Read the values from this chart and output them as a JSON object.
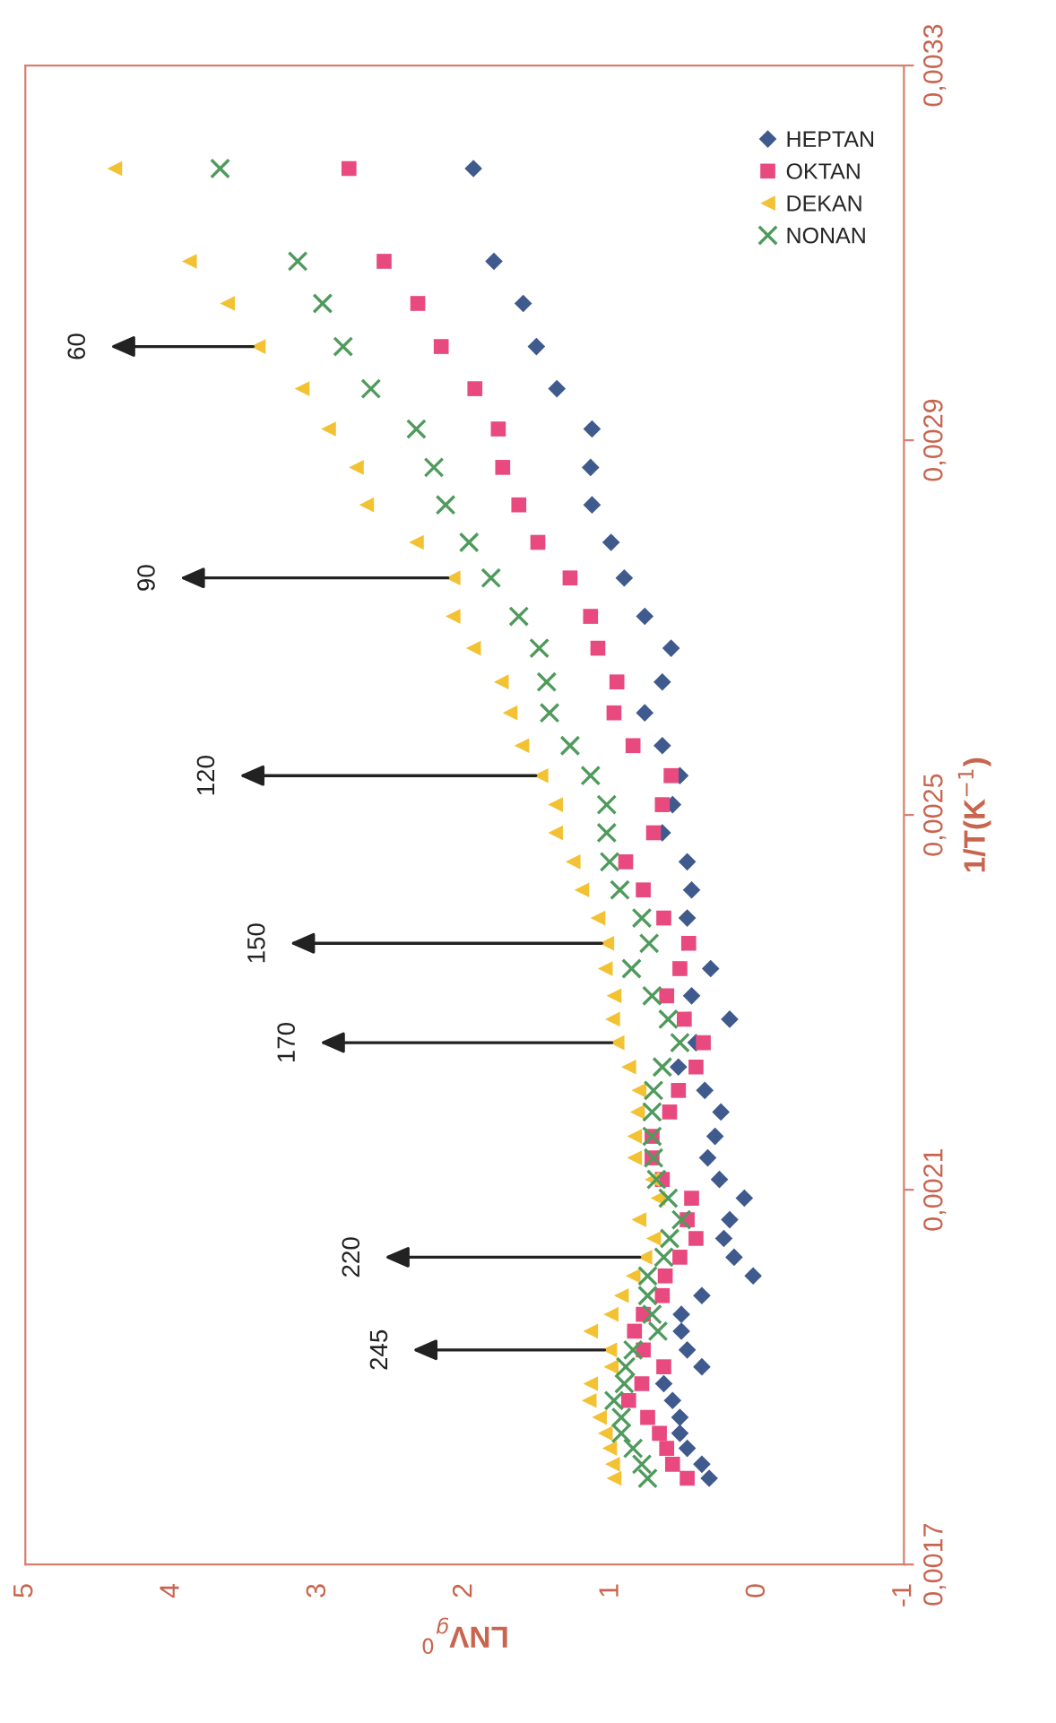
{
  "chart_data": {
    "type": "scatter",
    "xlabel": "LNV$_{g}$$^{0}$",
    "ylabel": "1/T(K$^{−1}$)",
    "xlim": [
      5,
      -1
    ],
    "xticks": [
      5,
      4,
      3,
      2,
      1,
      0,
      -1
    ],
    "ylim": [
      0.0017,
      0.0033
    ],
    "yticks": [
      {
        "value": 0.0017,
        "label": "0,0017"
      },
      {
        "value": 0.0021,
        "label": "0,0021"
      },
      {
        "value": 0.0025,
        "label": "0,0025"
      },
      {
        "value": 0.0029,
        "label": "0,0029"
      },
      {
        "value": 0.0033,
        "label": "0,0033"
      }
    ],
    "grid": false,
    "legend": "top right",
    "series": [
      {
        "name": "HEPTAN",
        "color": "#3f5a8c",
        "marker": "diamond",
        "x": [
          1.94,
          1.8,
          1.6,
          1.51,
          1.37,
          1.13,
          1.14,
          1.13,
          1.0,
          0.91,
          0.77,
          0.59,
          0.65,
          0.77,
          0.65,
          0.53,
          0.58,
          0.65,
          0.48,
          0.45,
          0.48,
          0.32,
          0.45,
          0.19,
          0.42,
          0.54,
          0.36,
          0.25,
          0.29,
          0.34,
          0.26,
          0.09,
          0.19,
          0.23,
          0.16,
          0.03,
          0.38,
          0.52,
          0.52,
          0.48,
          0.38,
          0.64,
          0.58,
          0.53,
          0.53,
          0.48,
          0.38,
          0.33
        ],
        "values": [
          0.00319,
          0.003091,
          0.003046,
          0.003,
          0.002955,
          0.002912,
          0.002871,
          0.002831,
          0.002791,
          0.002753,
          0.002712,
          0.002678,
          0.002642,
          0.002609,
          0.002574,
          0.002542,
          0.002511,
          0.002481,
          0.00245,
          0.00242,
          0.00239,
          0.002336,
          0.002307,
          0.002282,
          0.002257,
          0.002231,
          0.002206,
          0.002183,
          0.002157,
          0.002134,
          0.002111,
          0.002091,
          0.002068,
          0.002048,
          0.002028,
          0.002008,
          0.001987,
          0.001967,
          0.001949,
          0.001929,
          0.001911,
          0.001893,
          0.001875,
          0.001857,
          0.00184,
          0.001824,
          0.001807,
          0.001792
        ]
      },
      {
        "name": "OKTAN",
        "color": "#e84a7f",
        "marker": "square",
        "x": [
          2.79,
          2.55,
          2.32,
          2.16,
          1.93,
          1.77,
          1.74,
          1.63,
          1.5,
          1.28,
          1.14,
          1.09,
          0.96,
          0.98,
          0.85,
          0.59,
          0.65,
          0.71,
          0.9,
          0.78,
          0.64,
          0.47,
          0.53,
          0.62,
          0.5,
          0.37,
          0.42,
          0.54,
          0.6,
          0.72,
          0.72,
          0.65,
          0.45,
          0.48,
          0.42,
          0.53,
          0.63,
          0.65,
          0.78,
          0.84,
          0.78,
          0.64,
          0.79,
          0.88,
          0.75,
          0.67,
          0.62,
          0.58,
          0.48
        ],
        "values": [
          0.00319,
          0.003091,
          0.003046,
          0.003,
          0.002955,
          0.002912,
          0.002871,
          0.002831,
          0.002791,
          0.002753,
          0.002712,
          0.002678,
          0.002642,
          0.002609,
          0.002574,
          0.002542,
          0.002511,
          0.002481,
          0.00245,
          0.00242,
          0.00239,
          0.002363,
          0.002336,
          0.002307,
          0.002282,
          0.002257,
          0.002231,
          0.002206,
          0.002183,
          0.002157,
          0.002134,
          0.002111,
          0.002091,
          0.002068,
          0.002048,
          0.002028,
          0.002008,
          0.001987,
          0.001967,
          0.001949,
          0.001929,
          0.001911,
          0.001893,
          0.001875,
          0.001857,
          0.00184,
          0.001824,
          0.001807,
          0.001792
        ]
      },
      {
        "name": "DEKAN",
        "color": "#f2c232",
        "marker": "triangle",
        "x": [
          4.39,
          3.88,
          3.62,
          3.41,
          3.11,
          2.93,
          2.74,
          2.67,
          2.33,
          2.08,
          2.08,
          1.94,
          1.75,
          1.69,
          1.61,
          1.48,
          1.38,
          1.38,
          1.26,
          1.2,
          1.09,
          1.03,
          1.04,
          0.98,
          0.99,
          0.96,
          0.88,
          0.81,
          0.82,
          0.84,
          0.84,
          0.72,
          0.68,
          0.81,
          0.71,
          0.77,
          0.85,
          0.93,
          1.0,
          1.14,
          1.01,
          1.0,
          1.14,
          1.15,
          1.08,
          1.04,
          1.01,
          0.99,
          0.98
        ],
        "values": [
          0.00319,
          0.003091,
          0.003046,
          0.003,
          0.002955,
          0.002912,
          0.002871,
          0.002831,
          0.002791,
          0.002753,
          0.002712,
          0.002678,
          0.002642,
          0.002609,
          0.002574,
          0.002542,
          0.002511,
          0.002481,
          0.00245,
          0.00242,
          0.00239,
          0.002363,
          0.002336,
          0.002307,
          0.002282,
          0.002257,
          0.002231,
          0.002206,
          0.002183,
          0.002157,
          0.002134,
          0.002111,
          0.002091,
          0.002068,
          0.002048,
          0.002028,
          0.002008,
          0.001987,
          0.001967,
          0.001949,
          0.001929,
          0.001911,
          0.001893,
          0.001875,
          0.001857,
          0.00184,
          0.001824,
          0.001807,
          0.001792
        ]
      },
      {
        "name": "NONAN",
        "color": "#4f9a5c",
        "marker": "cross",
        "x": [
          3.67,
          3.14,
          2.97,
          2.83,
          2.64,
          2.33,
          2.21,
          2.13,
          1.97,
          1.82,
          1.63,
          1.49,
          1.44,
          1.42,
          1.28,
          1.14,
          1.03,
          1.03,
          1.01,
          0.94,
          0.79,
          0.74,
          0.86,
          0.72,
          0.61,
          0.53,
          0.65,
          0.71,
          0.72,
          0.72,
          0.71,
          0.69,
          0.61,
          0.52,
          0.6,
          0.64,
          0.75,
          0.75,
          0.72,
          0.68,
          0.85,
          0.9,
          0.91,
          0.98,
          0.93,
          0.93,
          0.85,
          0.79,
          0.75
        ],
        "values": [
          0.00319,
          0.003091,
          0.003046,
          0.003,
          0.002955,
          0.002912,
          0.002871,
          0.002831,
          0.002791,
          0.002753,
          0.002712,
          0.002678,
          0.002642,
          0.002609,
          0.002574,
          0.002542,
          0.002511,
          0.002481,
          0.00245,
          0.00242,
          0.00239,
          0.002363,
          0.002336,
          0.002307,
          0.002282,
          0.002257,
          0.002231,
          0.002206,
          0.002183,
          0.002157,
          0.002134,
          0.002111,
          0.002091,
          0.002068,
          0.002048,
          0.002028,
          0.002008,
          0.001987,
          0.001967,
          0.001949,
          0.001929,
          0.001911,
          0.001893,
          0.001875,
          0.001857,
          0.00184,
          0.001824,
          0.001807,
          0.001792
        ]
      }
    ],
    "annotations": [
      {
        "text": "60",
        "x": 3.41,
        "y": 0.003
      },
      {
        "text": "90",
        "x": 2.08,
        "y": 0.002753
      },
      {
        "text": "120",
        "x": 1.48,
        "y": 0.002542
      },
      {
        "text": "150",
        "x": 1.03,
        "y": 0.002363
      },
      {
        "text": "170",
        "x": 0.96,
        "y": 0.002257
      },
      {
        "text": "220",
        "x": 0.77,
        "y": 0.002028
      },
      {
        "text": "245",
        "x": 1.01,
        "y": 0.001929
      }
    ]
  }
}
